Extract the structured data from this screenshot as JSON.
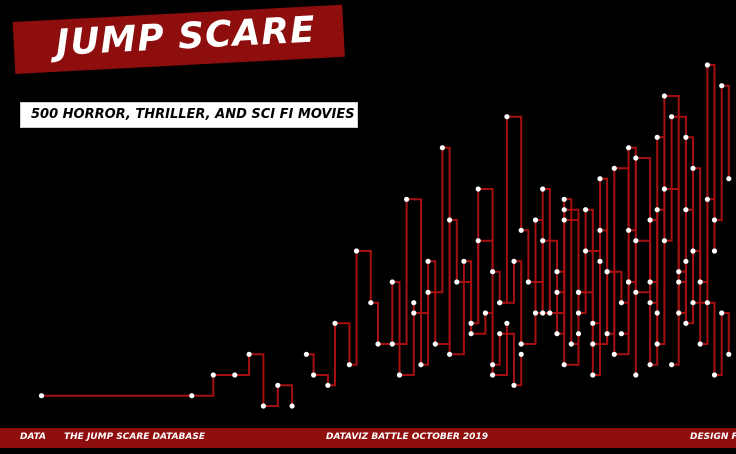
{
  "title": "JUMP SCARE",
  "subtitle": "500 HORROR, THRILLER, AND SCI FI MOVIES",
  "footer": {
    "data_label": "DATA",
    "source": "THE JUMP SCARE DATABASE",
    "event": "DATAVIZ BATTLE OCTOBER 2019",
    "design_label": "DESIGN FR"
  },
  "colors": {
    "background": "#000000",
    "accent": "#8e0d0d",
    "line": "#a50f0f",
    "dot": "#ffffff"
  },
  "chart_data": {
    "type": "line",
    "title": "",
    "xlabel": "",
    "ylabel": "",
    "grid": false,
    "legend": "none",
    "xlim": [
      0,
      100
    ],
    "ylim": [
      0,
      36
    ],
    "series": [
      {
        "x": [
          3,
          24,
          27,
          30,
          32,
          34,
          36,
          38
        ],
        "values": [
          1,
          1,
          3,
          3,
          5,
          0,
          2,
          0
        ]
      },
      {
        "x": [
          40,
          41,
          43,
          44,
          46,
          47,
          49,
          50,
          52,
          53,
          55
        ],
        "values": [
          5,
          3,
          2,
          8,
          4,
          15,
          10,
          6,
          12,
          3,
          10
        ]
      },
      {
        "x": [
          52,
          54,
          56,
          57,
          59,
          60,
          62,
          63,
          65,
          66,
          68
        ],
        "values": [
          6,
          20,
          4,
          11,
          25,
          5,
          14,
          7,
          9,
          3,
          8
        ]
      },
      {
        "x": [
          55,
          57,
          58,
          60,
          61,
          63,
          64,
          66,
          67,
          69,
          70
        ],
        "values": [
          9,
          14,
          6,
          18,
          12,
          8,
          16,
          4,
          7,
          2,
          5
        ]
      },
      {
        "x": [
          63,
          64,
          66,
          67,
          69,
          70,
          72,
          73,
          75,
          76,
          78
        ],
        "values": [
          8,
          21,
          13,
          10,
          14,
          6,
          18,
          9,
          13,
          4,
          7
        ]
      },
      {
        "x": [
          67,
          68,
          70,
          71,
          73,
          74,
          76,
          77,
          78,
          80,
          81
        ],
        "values": [
          10,
          28,
          17,
          12,
          21,
          9,
          20,
          6,
          11,
          3,
          14
        ]
      },
      {
        "x": [
          72,
          73,
          75,
          76,
          78,
          79,
          80,
          82,
          83,
          85,
          86
        ],
        "values": [
          9,
          16,
          7,
          18,
          11,
          19,
          6,
          13,
          5,
          12,
          3
        ]
      },
      {
        "x": [
          75,
          76,
          78,
          79,
          81,
          82,
          83,
          85,
          86,
          88,
          89
        ],
        "values": [
          11,
          19,
          9,
          15,
          17,
          7,
          23,
          12,
          16,
          4,
          9
        ]
      },
      {
        "x": [
          80,
          81,
          82,
          84,
          85,
          86,
          88,
          89,
          90,
          92,
          93
        ],
        "values": [
          8,
          22,
          13,
          10,
          25,
          11,
          18,
          6,
          21,
          9,
          14
        ]
      },
      {
        "x": [
          84,
          85,
          86,
          88,
          89,
          90,
          92,
          93,
          94,
          96,
          97
        ],
        "values": [
          7,
          17,
          24,
          12,
          19,
          30,
          13,
          26,
          10,
          20,
          15
        ]
      },
      {
        "x": [
          88,
          89,
          90,
          91,
          93,
          94,
          95,
          96,
          97,
          98,
          99
        ],
        "values": [
          10,
          26,
          16,
          28,
          19,
          23,
          12,
          33,
          18,
          31,
          22
        ]
      },
      {
        "x": [
          91,
          92,
          93,
          94,
          95,
          96,
          97,
          98,
          99
        ],
        "values": [
          4,
          12,
          8,
          15,
          6,
          10,
          3,
          9,
          5
        ]
      }
    ]
  }
}
